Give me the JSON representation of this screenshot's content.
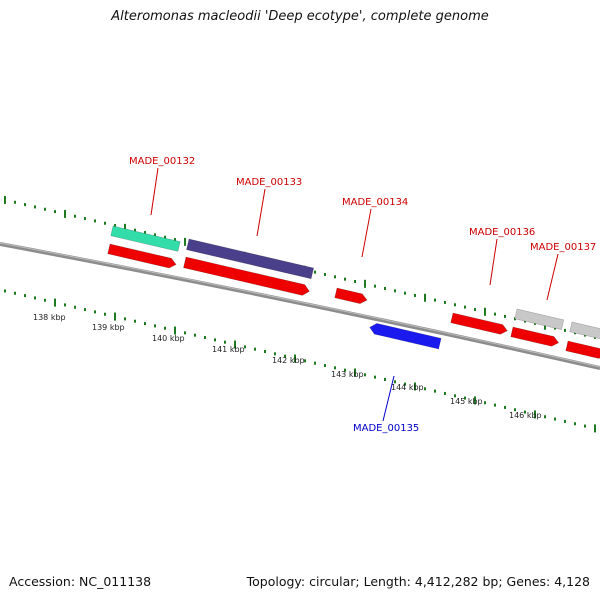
{
  "title": "Alteromonas macleodii 'Deep ecotype', complete genome",
  "footer": {
    "accession": "Accession: NC_011138",
    "topology": "Topology: circular; Length: 4,412,282 bp; Genes: 4,128"
  },
  "colors": {
    "backbone": "#8c8c8c",
    "ticks": "#1e7a1e",
    "forward_label": "#cc0000",
    "reverse_label": "#0000cc",
    "gene_red": "#ee0000",
    "gene_teal": "#33ddaa",
    "gene_purple": "#4a3f8a",
    "gene_blue": "#1a1aee",
    "gene_gray": "#c8c8c8"
  },
  "scale_labels": [
    "138 kbp",
    "139 kbp",
    "140 kbp",
    "141 kbp",
    "142 kbp",
    "143 kbp",
    "144 kbp",
    "145 kbp",
    "146 kbp"
  ],
  "gene_labels": [
    {
      "name": "MADE_00132",
      "strand": "forward"
    },
    {
      "name": "MADE_00133",
      "strand": "forward"
    },
    {
      "name": "MADE_00134",
      "strand": "forward"
    },
    {
      "name": "MADE_00135",
      "strand": "reverse"
    },
    {
      "name": "MADE_00136",
      "strand": "forward"
    },
    {
      "name": "MADE_00137",
      "strand": "forward"
    }
  ]
}
